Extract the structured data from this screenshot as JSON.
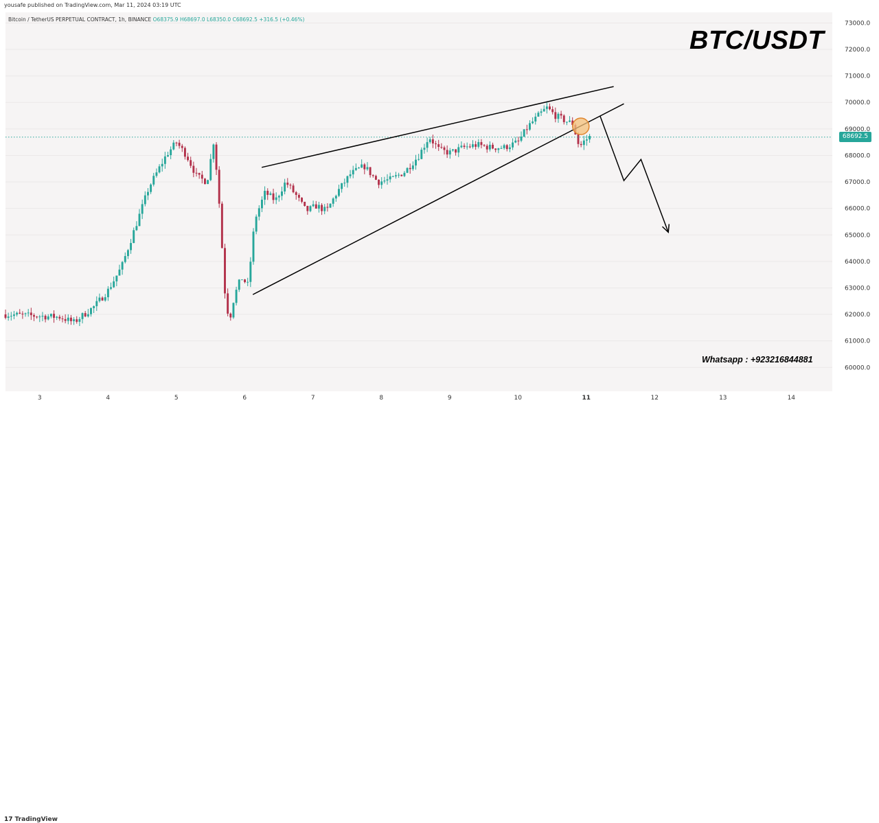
{
  "publisher": "yousafe published on TradingView.com, Mar 11, 2024 03:19 UTC",
  "symbol": {
    "name": "Bitcoin / TetherUS PERPETUAL CONTRACT, 1h, BINANCE",
    "open": "O68375.9",
    "high": "H68697.0",
    "low": "L68350.0",
    "close": "C68692.5",
    "change": "+316.5 (+0.46%)"
  },
  "overlay": {
    "title": "BTC/USDT",
    "contact": "Whatsapp : +923216844881"
  },
  "last_price_label": "68692.5",
  "branding": "TradingView",
  "colors": {
    "bull": "#26a69a",
    "bear": "#b2304a",
    "annotation": "#000000",
    "highlight_fill": "#f4c07a",
    "highlight_stroke": "#e0862e",
    "last_price_line": "#26a69a"
  },
  "chart_data": {
    "type": "candlestick",
    "title": "",
    "xlabel": "",
    "ylabel": "",
    "ylim": [
      59100,
      73400
    ],
    "xlim": [
      2.5,
      14.6
    ],
    "y_ticks": [
      "73000.0",
      "72000.0",
      "71000.0",
      "70000.0",
      "69000.0",
      "68000.0",
      "67000.0",
      "66000.0",
      "65000.0",
      "64000.0",
      "63000.0",
      "62000.0",
      "61000.0",
      "60000.0"
    ],
    "x_ticks": [
      {
        "x": 3,
        "label": "3"
      },
      {
        "x": 4,
        "label": "4"
      },
      {
        "x": 5,
        "label": "5"
      },
      {
        "x": 6,
        "label": "6"
      },
      {
        "x": 7,
        "label": "7"
      },
      {
        "x": 8,
        "label": "8"
      },
      {
        "x": 9,
        "label": "9"
      },
      {
        "x": 10,
        "label": "10"
      },
      {
        "x": 11,
        "label": "11",
        "bold": true
      },
      {
        "x": 12,
        "label": "12"
      },
      {
        "x": 13,
        "label": "13"
      },
      {
        "x": 14,
        "label": "14"
      }
    ],
    "last_price": 68692.5,
    "candle_interval_days": 0.0417,
    "close_path": [
      [
        2.5,
        62000
      ],
      [
        3.3,
        61900
      ],
      [
        3.5,
        61700
      ],
      [
        3.8,
        62300
      ],
      [
        4.0,
        62900
      ],
      [
        4.2,
        63800
      ],
      [
        4.4,
        65300
      ],
      [
        4.6,
        66800
      ],
      [
        4.85,
        68000
      ],
      [
        5.0,
        68500
      ],
      [
        5.15,
        68000
      ],
      [
        5.3,
        67200
      ],
      [
        5.45,
        67000
      ],
      [
        5.55,
        68600
      ],
      [
        5.62,
        66500
      ],
      [
        5.72,
        62500
      ],
      [
        5.78,
        61800
      ],
      [
        5.85,
        62700
      ],
      [
        5.95,
        63400
      ],
      [
        6.05,
        63100
      ],
      [
        6.15,
        65600
      ],
      [
        6.3,
        66600
      ],
      [
        6.45,
        66300
      ],
      [
        6.6,
        67000
      ],
      [
        6.75,
        66500
      ],
      [
        6.9,
        65900
      ],
      [
        7.05,
        66100
      ],
      [
        7.2,
        65900
      ],
      [
        7.35,
        66600
      ],
      [
        7.55,
        67300
      ],
      [
        7.75,
        67600
      ],
      [
        7.95,
        67000
      ],
      [
        8.15,
        67100
      ],
      [
        8.35,
        67400
      ],
      [
        8.55,
        68000
      ],
      [
        8.7,
        68700
      ],
      [
        8.85,
        68200
      ],
      [
        9.0,
        68100
      ],
      [
        9.2,
        68300
      ],
      [
        9.4,
        68400
      ],
      [
        9.6,
        68300
      ],
      [
        9.8,
        68300
      ],
      [
        10.0,
        68500
      ],
      [
        10.15,
        69100
      ],
      [
        10.3,
        69500
      ],
      [
        10.42,
        69800
      ],
      [
        10.55,
        69500
      ],
      [
        10.7,
        69300
      ],
      [
        10.8,
        69200
      ],
      [
        10.9,
        68300
      ],
      [
        10.95,
        68500
      ],
      [
        11.05,
        68700
      ]
    ],
    "annotations": [
      {
        "type": "line",
        "points": [
          [
            6.25,
            67550
          ],
          [
            11.4,
            70600
          ]
        ]
      },
      {
        "type": "line",
        "points": [
          [
            6.12,
            62750
          ],
          [
            11.55,
            69950
          ]
        ]
      },
      {
        "type": "polyline",
        "points": [
          [
            11.2,
            69500
          ],
          [
            11.55,
            67050
          ],
          [
            11.8,
            67850
          ],
          [
            12.2,
            65100
          ]
        ]
      },
      {
        "type": "circle",
        "center": [
          10.92,
          69100
        ]
      }
    ]
  }
}
